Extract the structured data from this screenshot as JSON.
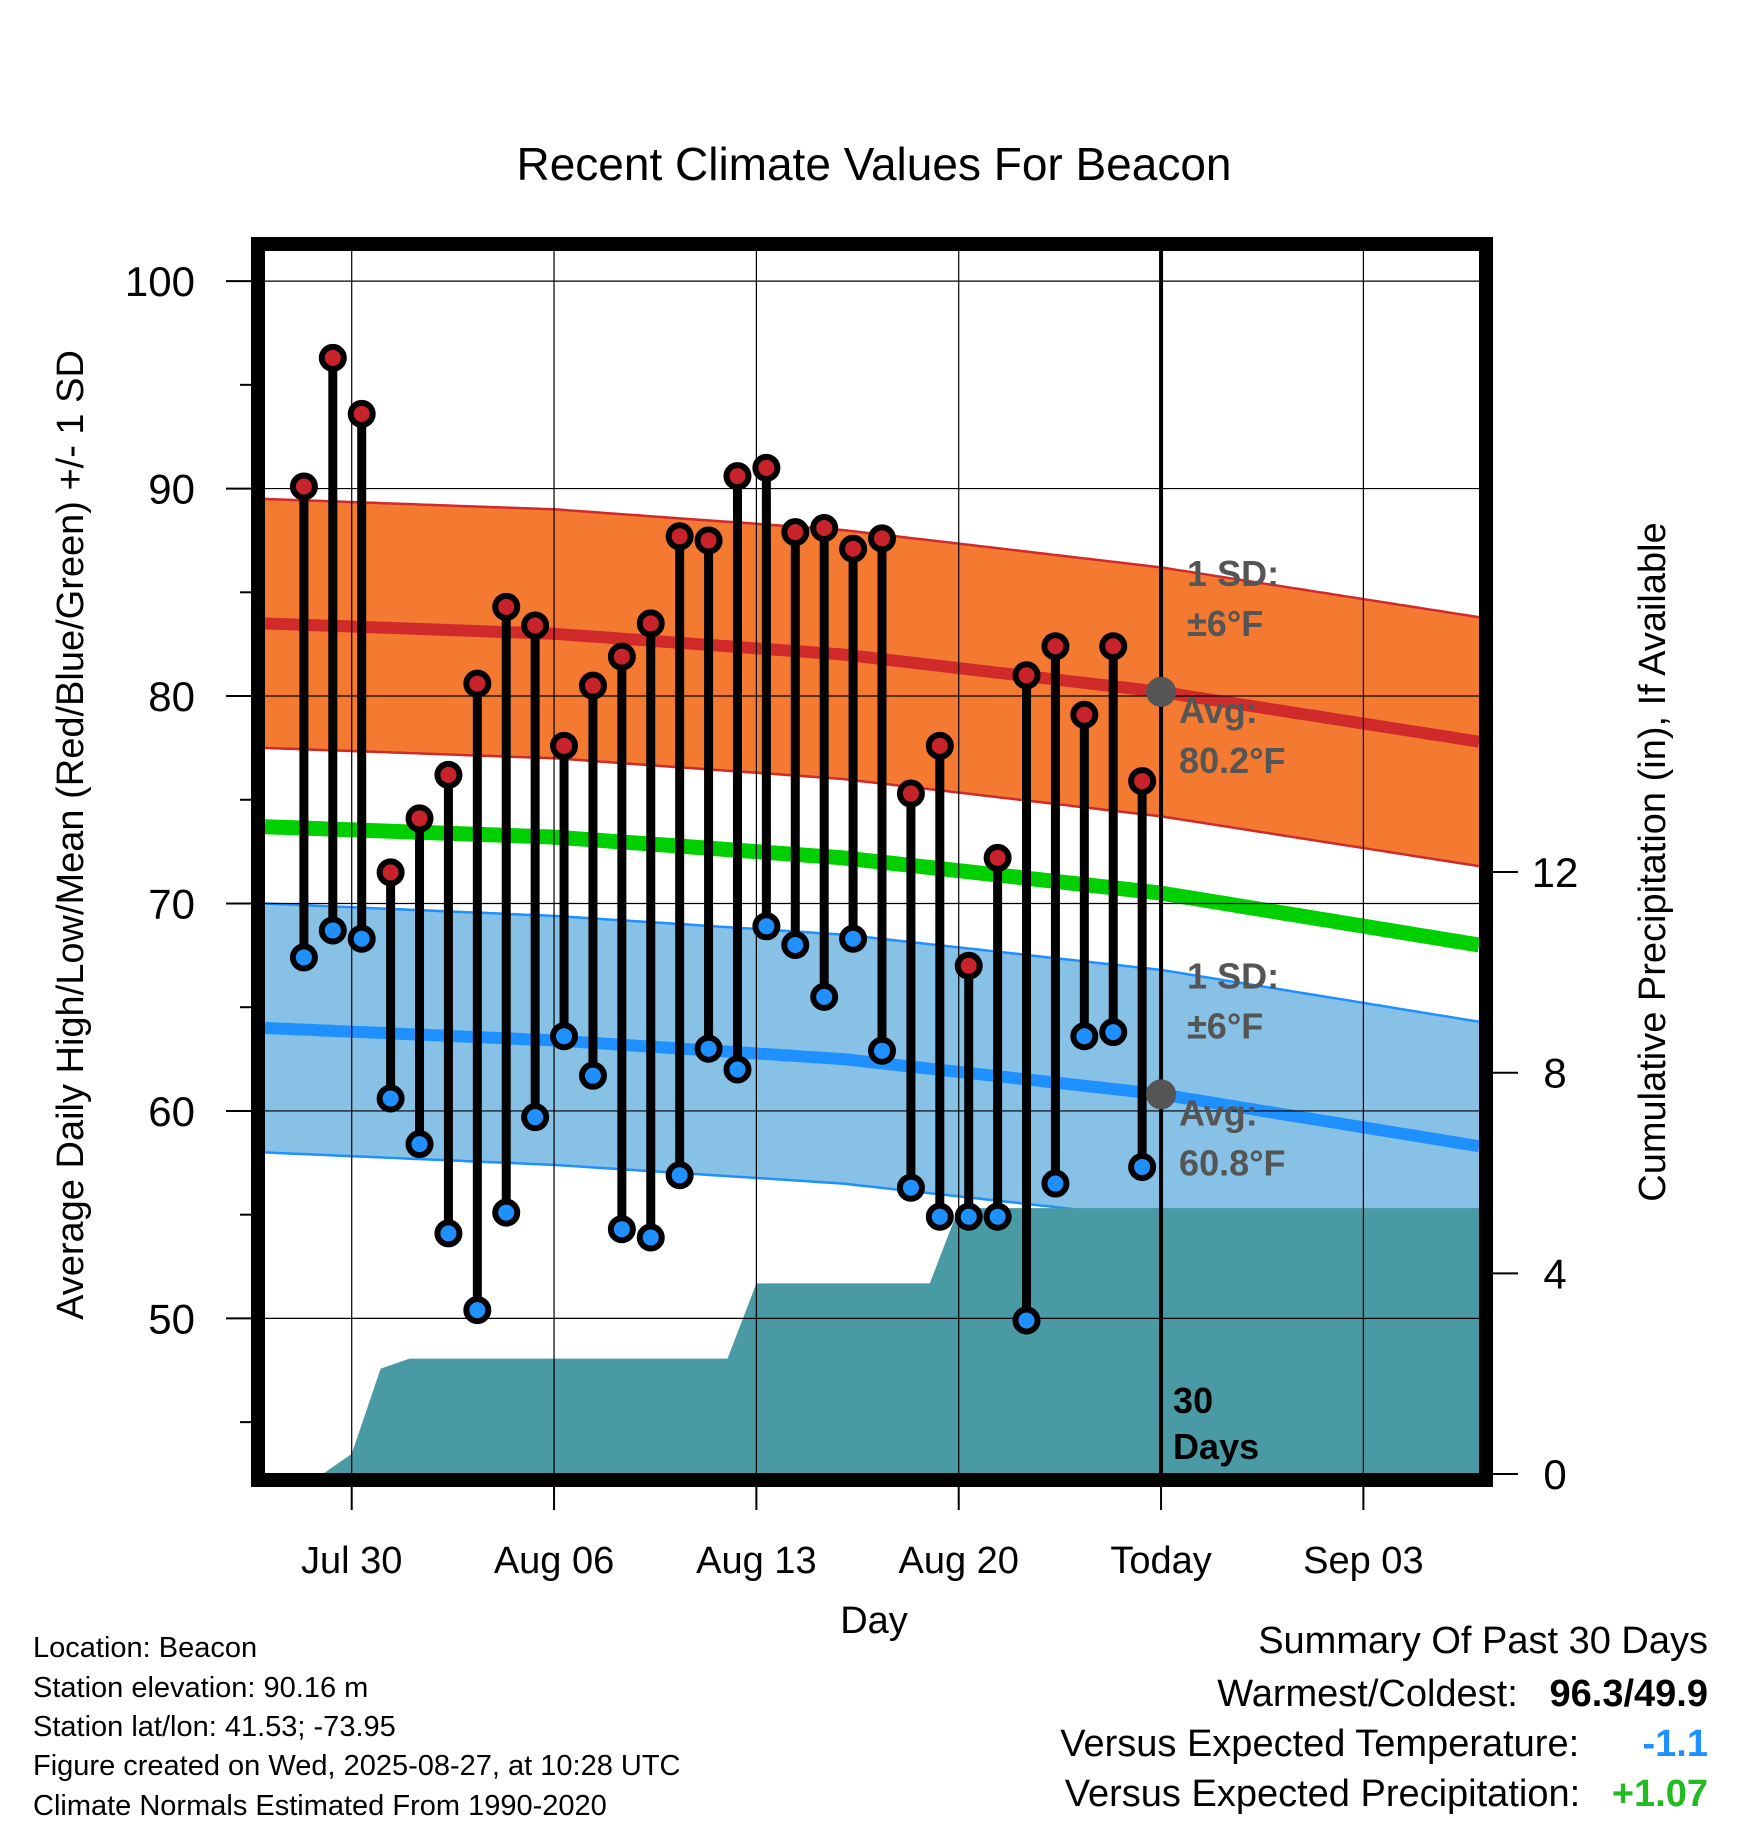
{
  "chart_data": {
    "type": "line",
    "title": "Recent Climate Values For Beacon",
    "xlabel": "Day",
    "ylabel": "Average Daily High/Low/Mean (Red/Blue/Green) +/- 1 SD",
    "y2label": "Cumulative Precipitation (in), If Available",
    "x_tick_labels": [
      "Jul 30",
      "Aug 06",
      "Aug 13",
      "Aug 20",
      "Today",
      "Sep 03"
    ],
    "x_range": [
      "2025-07-27",
      "2025-09-07"
    ],
    "today": "2025-08-27",
    "ylim": [
      42.5,
      101.5
    ],
    "y_ticks": [
      50,
      60,
      70,
      80,
      90,
      100
    ],
    "y2lim": [
      0,
      24.4
    ],
    "y2_ticks": [
      0,
      4,
      8,
      12
    ],
    "grid": true,
    "daily": {
      "dates": [
        "2025-07-28",
        "2025-07-29",
        "2025-07-30",
        "2025-07-31",
        "2025-08-01",
        "2025-08-02",
        "2025-08-03",
        "2025-08-04",
        "2025-08-05",
        "2025-08-06",
        "2025-08-07",
        "2025-08-08",
        "2025-08-09",
        "2025-08-10",
        "2025-08-11",
        "2025-08-12",
        "2025-08-13",
        "2025-08-14",
        "2025-08-15",
        "2025-08-16",
        "2025-08-17",
        "2025-08-18",
        "2025-08-19",
        "2025-08-20",
        "2025-08-21",
        "2025-08-22",
        "2025-08-23",
        "2025-08-24",
        "2025-08-25",
        "2025-08-26"
      ],
      "high": [
        90.1,
        96.3,
        93.6,
        71.5,
        74.1,
        76.2,
        80.6,
        84.3,
        83.4,
        77.6,
        80.5,
        81.9,
        83.5,
        87.7,
        87.5,
        90.6,
        91.0,
        87.9,
        88.1,
        87.1,
        87.6,
        75.3,
        77.6,
        67.0,
        72.2,
        81.0,
        82.4,
        79.1,
        82.4,
        75.9
      ],
      "low": [
        67.4,
        68.7,
        68.3,
        60.6,
        58.4,
        54.1,
        50.4,
        55.1,
        59.7,
        63.6,
        61.7,
        54.3,
        53.9,
        56.9,
        63.0,
        62.0,
        68.9,
        68.0,
        65.5,
        68.3,
        62.9,
        56.3,
        54.9,
        54.9,
        54.9,
        49.9,
        56.5,
        63.6,
        63.8,
        57.3
      ]
    },
    "normals": {
      "dates": [
        "2025-07-27",
        "2025-08-06",
        "2025-08-16",
        "2025-08-27",
        "2025-09-07"
      ],
      "high_avg": [
        83.5,
        83.0,
        82.0,
        80.2,
        77.8
      ],
      "low_avg": [
        64.0,
        63.4,
        62.5,
        60.8,
        58.3
      ],
      "mean": [
        73.7,
        73.2,
        72.2,
        70.5,
        68.0
      ],
      "high_sd": 6,
      "low_sd": 6
    },
    "precip_cumulative": {
      "dates": [
        "2025-07-27",
        "2025-07-28",
        "2025-07-29",
        "2025-07-30",
        "2025-07-31",
        "2025-08-01",
        "2025-08-11",
        "2025-08-12",
        "2025-08-13",
        "2025-08-18",
        "2025-08-19",
        "2025-08-20",
        "2025-09-07"
      ],
      "values": [
        0,
        0,
        0,
        0.4,
        2.1,
        2.3,
        2.3,
        2.3,
        3.8,
        3.8,
        3.8,
        5.3,
        5.3
      ]
    },
    "annotations": {
      "high_sd": {
        "line1": "1 SD:",
        "line2": "±6°F"
      },
      "high_avg": {
        "line1": "Avg:",
        "line2": "80.2°F"
      },
      "low_sd": {
        "line1": "1 SD:",
        "line2": "±6°F"
      },
      "low_avg": {
        "line1": "Avg:",
        "line2": "60.8°F"
      },
      "period": {
        "line1": "30",
        "line2": "Days"
      }
    },
    "colors": {
      "high_band": "#f47a32",
      "high_line": "#d02a2a",
      "high_marker": "#c8232a",
      "low_band": "#87c1e6",
      "low_line": "#1e90ff",
      "low_marker": "#1e90ff",
      "mean_line": "#00d000",
      "precip": "#4a9aa6",
      "annotation": "#555555"
    }
  },
  "footer": {
    "location": "Location: Beacon",
    "elevation": "Station elevation: 90.16 m",
    "latlon": "Station lat/lon: 41.53; -73.95",
    "created": "Figure created on Wed, 2025-08-27, at 10:28 UTC",
    "normals": "Climate Normals Estimated From 1990-2020"
  },
  "summary": {
    "heading": "Summary Of Past 30 Days",
    "warmest_label": "Warmest/Coldest:",
    "warmest_value": "96.3",
    "coldest_value": "49.9",
    "temp_label": "Versus Expected Temperature:",
    "temp_value": "-1.1",
    "temp_color": "#1e90ff",
    "precip_label": "Versus Expected Precipitation:",
    "precip_value": "+1.07",
    "precip_color": "#22bb22"
  }
}
